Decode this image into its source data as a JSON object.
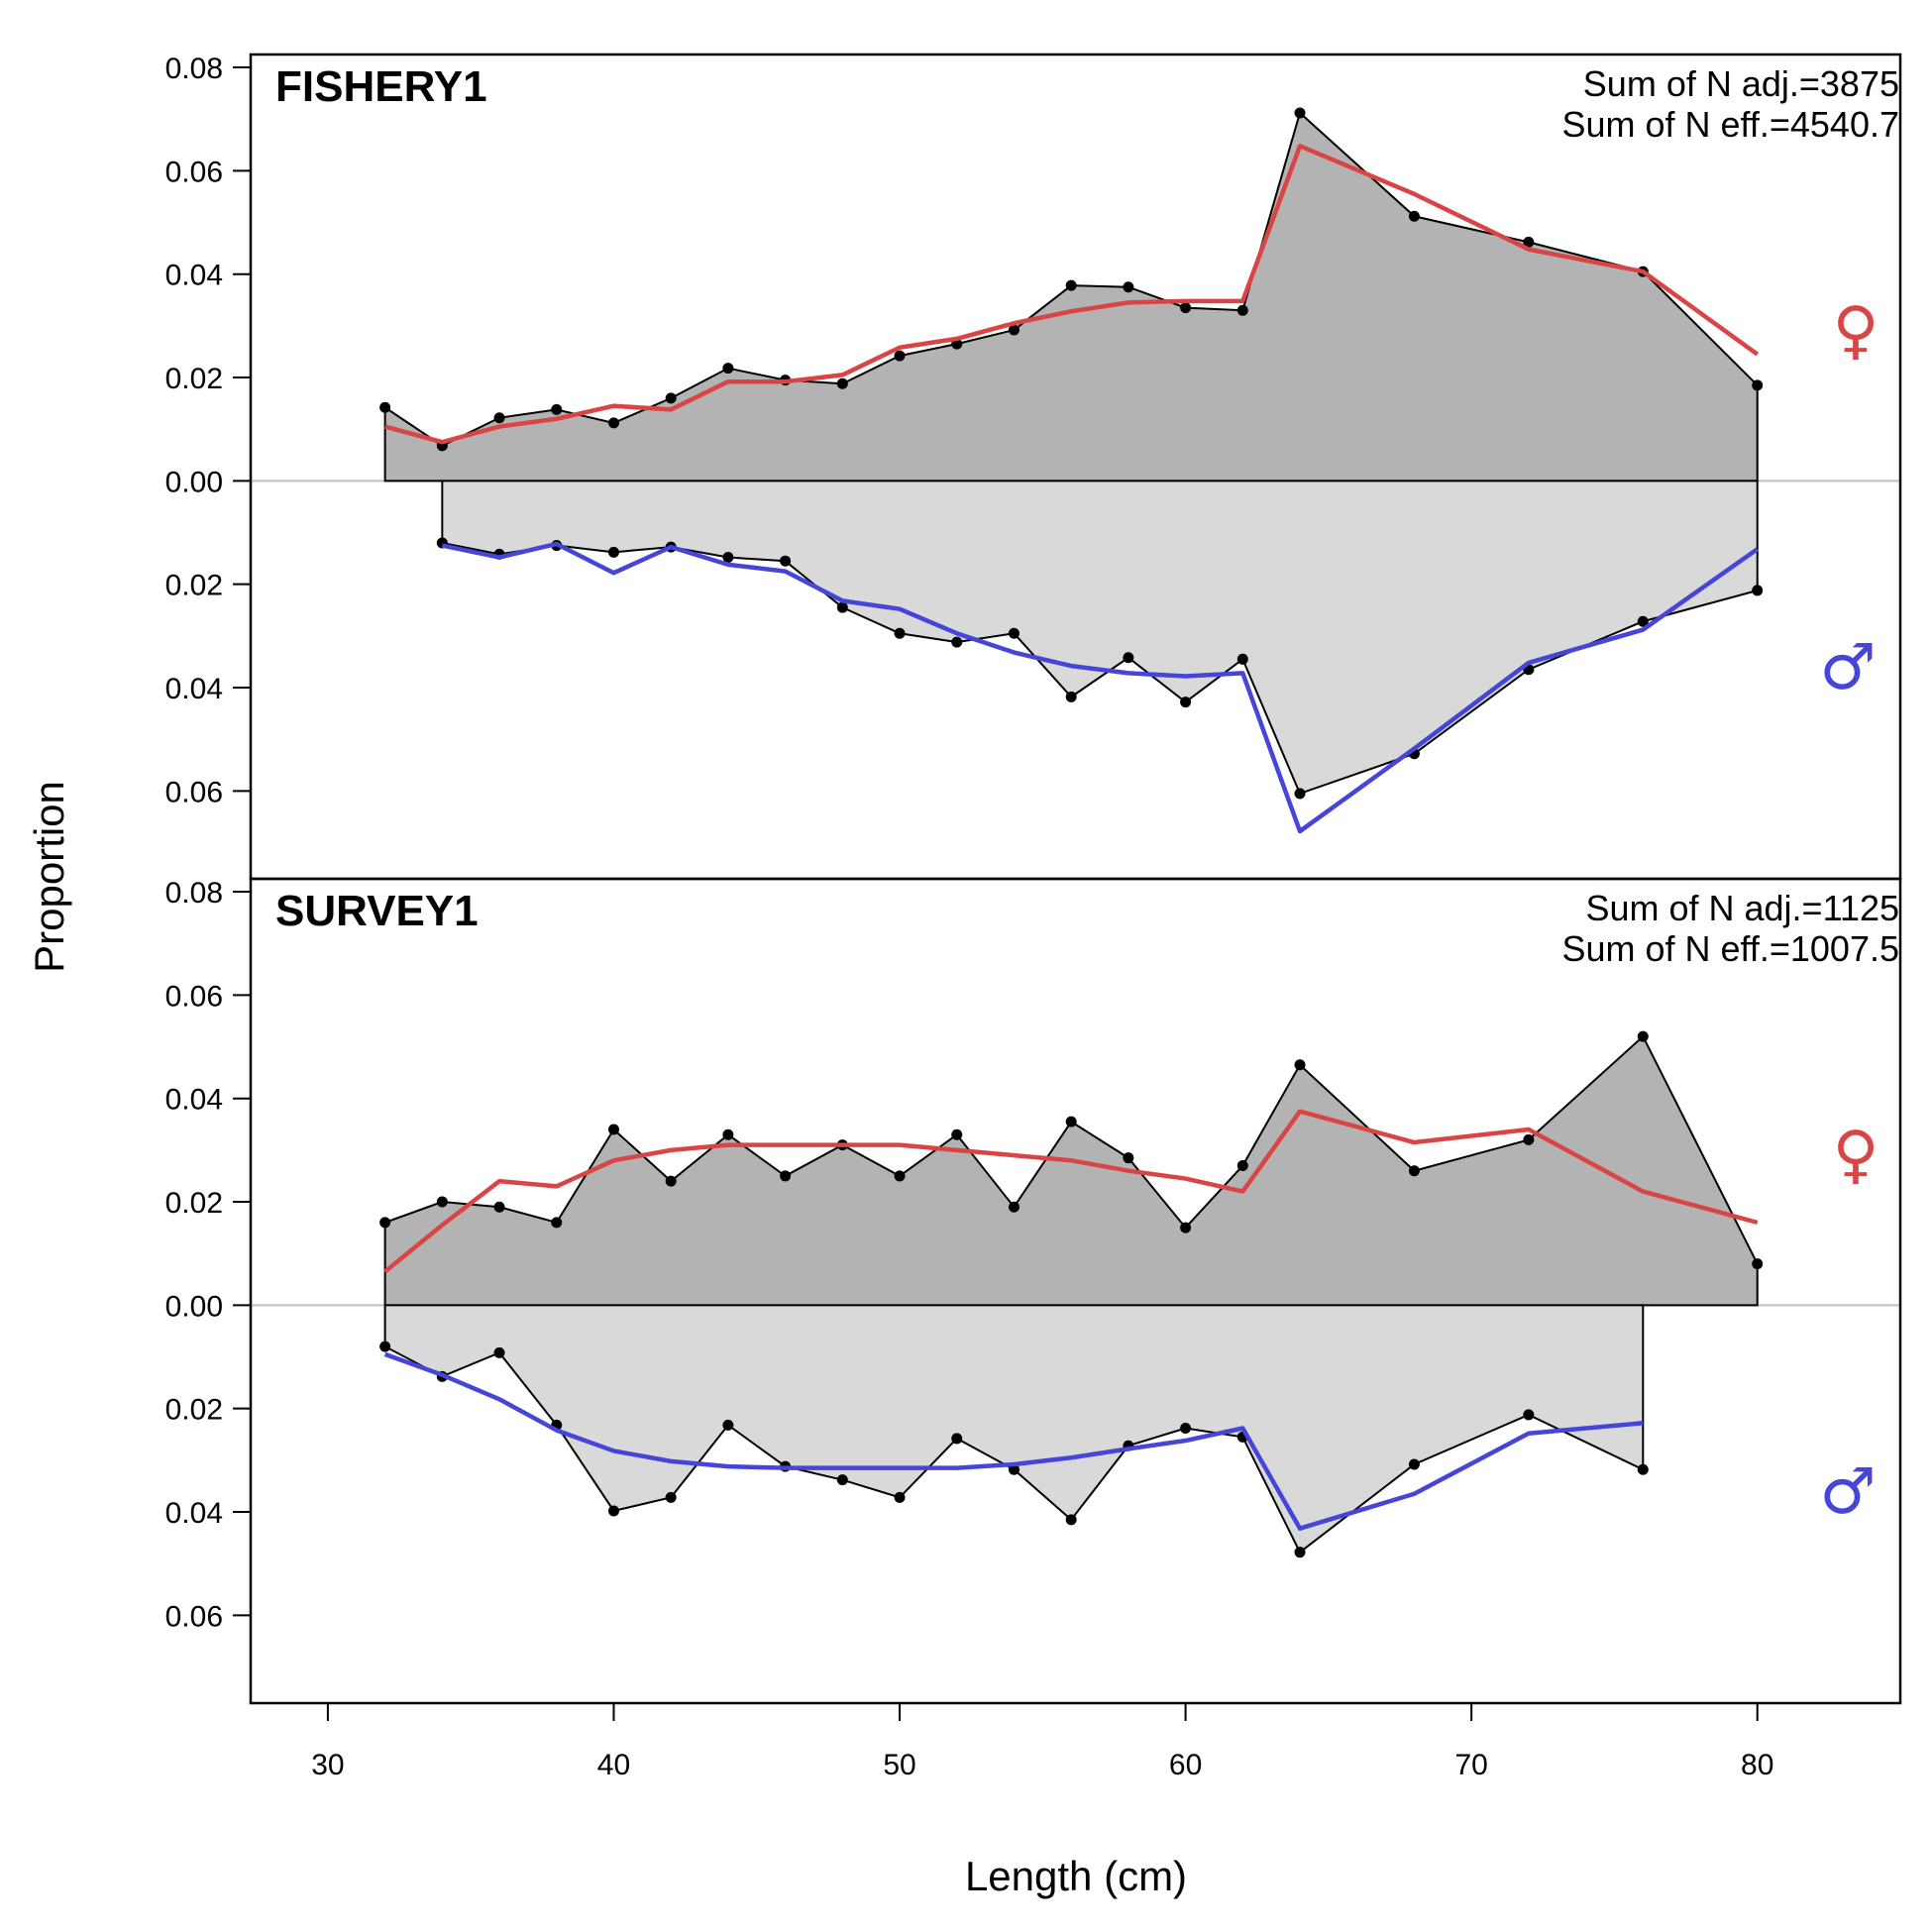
{
  "chart_data": {
    "type": "area",
    "xlabel": "Length (cm)",
    "ylabel": "Proportion",
    "xlim": [
      27.3,
      85
    ],
    "x_ticks": [
      "30",
      "40",
      "50",
      "60",
      "70",
      "80"
    ],
    "x_tick_values": [
      30,
      40,
      50,
      60,
      70,
      80
    ],
    "symbols": {
      "female": "♀",
      "male": "♂"
    },
    "colors": {
      "female_fill": "#b3b3b3",
      "male_fill": "#d9d9d9",
      "observed": "#000000",
      "female_expected": "#d94545",
      "male_expected": "#4545d9",
      "zero_line": "#bfbfbf"
    },
    "panels": [
      {
        "title": "FISHERY1",
        "stats": [
          "Sum of N adj.=3875",
          "Sum of N eff.=4540.7"
        ],
        "ylim": [
          -0.077,
          0.0825
        ],
        "y_tick_values": [
          0.08,
          0.06,
          0.04,
          0.02,
          0.0,
          -0.02,
          -0.04,
          -0.06
        ],
        "y_tick_labels": [
          "0.08",
          "0.06",
          "0.04",
          "0.02",
          "0.00",
          "0.02",
          "0.04",
          "0.06"
        ],
        "female": {
          "x": [
            32,
            34,
            36,
            38,
            40,
            42,
            44,
            46,
            48,
            50,
            52,
            54,
            56,
            58,
            60,
            62,
            64,
            68,
            72,
            76,
            80
          ],
          "observed": [
            0.0142,
            0.0068,
            0.0122,
            0.0138,
            0.0112,
            0.016,
            0.0218,
            0.0195,
            0.0188,
            0.0242,
            0.0265,
            0.0292,
            0.0378,
            0.0375,
            0.0335,
            0.033,
            0.0712,
            0.0512,
            0.0462,
            0.0405,
            0.0185
          ],
          "expected": [
            0.0105,
            0.0075,
            0.0105,
            0.012,
            0.0145,
            0.0138,
            0.0192,
            0.0192,
            0.0205,
            0.0258,
            0.0275,
            0.0305,
            0.0328,
            0.0345,
            0.0348,
            0.0348,
            0.0648,
            0.0555,
            0.0448,
            0.0405,
            0.0245
          ]
        },
        "male": {
          "x": [
            34,
            36,
            38,
            40,
            42,
            44,
            46,
            48,
            50,
            52,
            54,
            56,
            58,
            60,
            62,
            64,
            68,
            72,
            76,
            80
          ],
          "observed": [
            -0.012,
            -0.0142,
            -0.0125,
            -0.0138,
            -0.0128,
            -0.0148,
            -0.0155,
            -0.0245,
            -0.0295,
            -0.0312,
            -0.0295,
            -0.0418,
            -0.0342,
            -0.0428,
            -0.0345,
            -0.0605,
            -0.0528,
            -0.0365,
            -0.0272,
            -0.0212
          ],
          "expected": [
            -0.0125,
            -0.0148,
            -0.0122,
            -0.0178,
            -0.0128,
            -0.0162,
            -0.0175,
            -0.0232,
            -0.0248,
            -0.0295,
            -0.0332,
            -0.0358,
            -0.0372,
            -0.0378,
            -0.0372,
            -0.0678,
            -0.0518,
            -0.0352,
            -0.0288,
            -0.0132
          ]
        }
      },
      {
        "title": "SURVEY1",
        "stats": [
          "Sum of N adj.=1125",
          "Sum of N eff.=1007.5"
        ],
        "ylim": [
          -0.077,
          0.0825
        ],
        "y_tick_values": [
          0.08,
          0.06,
          0.04,
          0.02,
          0.0,
          -0.02,
          -0.04,
          -0.06
        ],
        "y_tick_labels": [
          "0.08",
          "0.06",
          "0.04",
          "0.02",
          "0.00",
          "0.02",
          "0.04",
          "0.06"
        ],
        "female": {
          "x": [
            32,
            34,
            36,
            38,
            40,
            42,
            44,
            46,
            48,
            50,
            52,
            54,
            56,
            58,
            60,
            62,
            64,
            68,
            72,
            76,
            80
          ],
          "observed": [
            0.016,
            0.02,
            0.019,
            0.016,
            0.034,
            0.024,
            0.033,
            0.025,
            0.031,
            0.025,
            0.033,
            0.019,
            0.0355,
            0.0285,
            0.015,
            0.027,
            0.0465,
            0.026,
            0.032,
            0.052,
            0.008
          ],
          "expected": [
            0.0065,
            0.0155,
            0.024,
            0.023,
            0.028,
            0.03,
            0.031,
            0.031,
            0.031,
            0.031,
            0.03,
            0.029,
            0.028,
            0.026,
            0.0245,
            0.022,
            0.0375,
            0.0315,
            0.034,
            0.022,
            0.016
          ]
        },
        "male": {
          "x": [
            32,
            34,
            36,
            38,
            40,
            42,
            44,
            46,
            48,
            50,
            52,
            54,
            56,
            58,
            60,
            62,
            64,
            68,
            72,
            76
          ],
          "observed": [
            -0.008,
            -0.0138,
            -0.0092,
            -0.0232,
            -0.0398,
            -0.0372,
            -0.0232,
            -0.0312,
            -0.0338,
            -0.0372,
            -0.0258,
            -0.0318,
            -0.0415,
            -0.0272,
            -0.0238,
            -0.0255,
            -0.0478,
            -0.0308,
            -0.0212,
            -0.0318
          ],
          "expected": [
            -0.0095,
            -0.0135,
            -0.0182,
            -0.0242,
            -0.0282,
            -0.0302,
            -0.0312,
            -0.0315,
            -0.0315,
            -0.0315,
            -0.0315,
            -0.0308,
            -0.0295,
            -0.0278,
            -0.0262,
            -0.0238,
            -0.0432,
            -0.0365,
            -0.0248,
            -0.0228
          ]
        }
      }
    ]
  }
}
